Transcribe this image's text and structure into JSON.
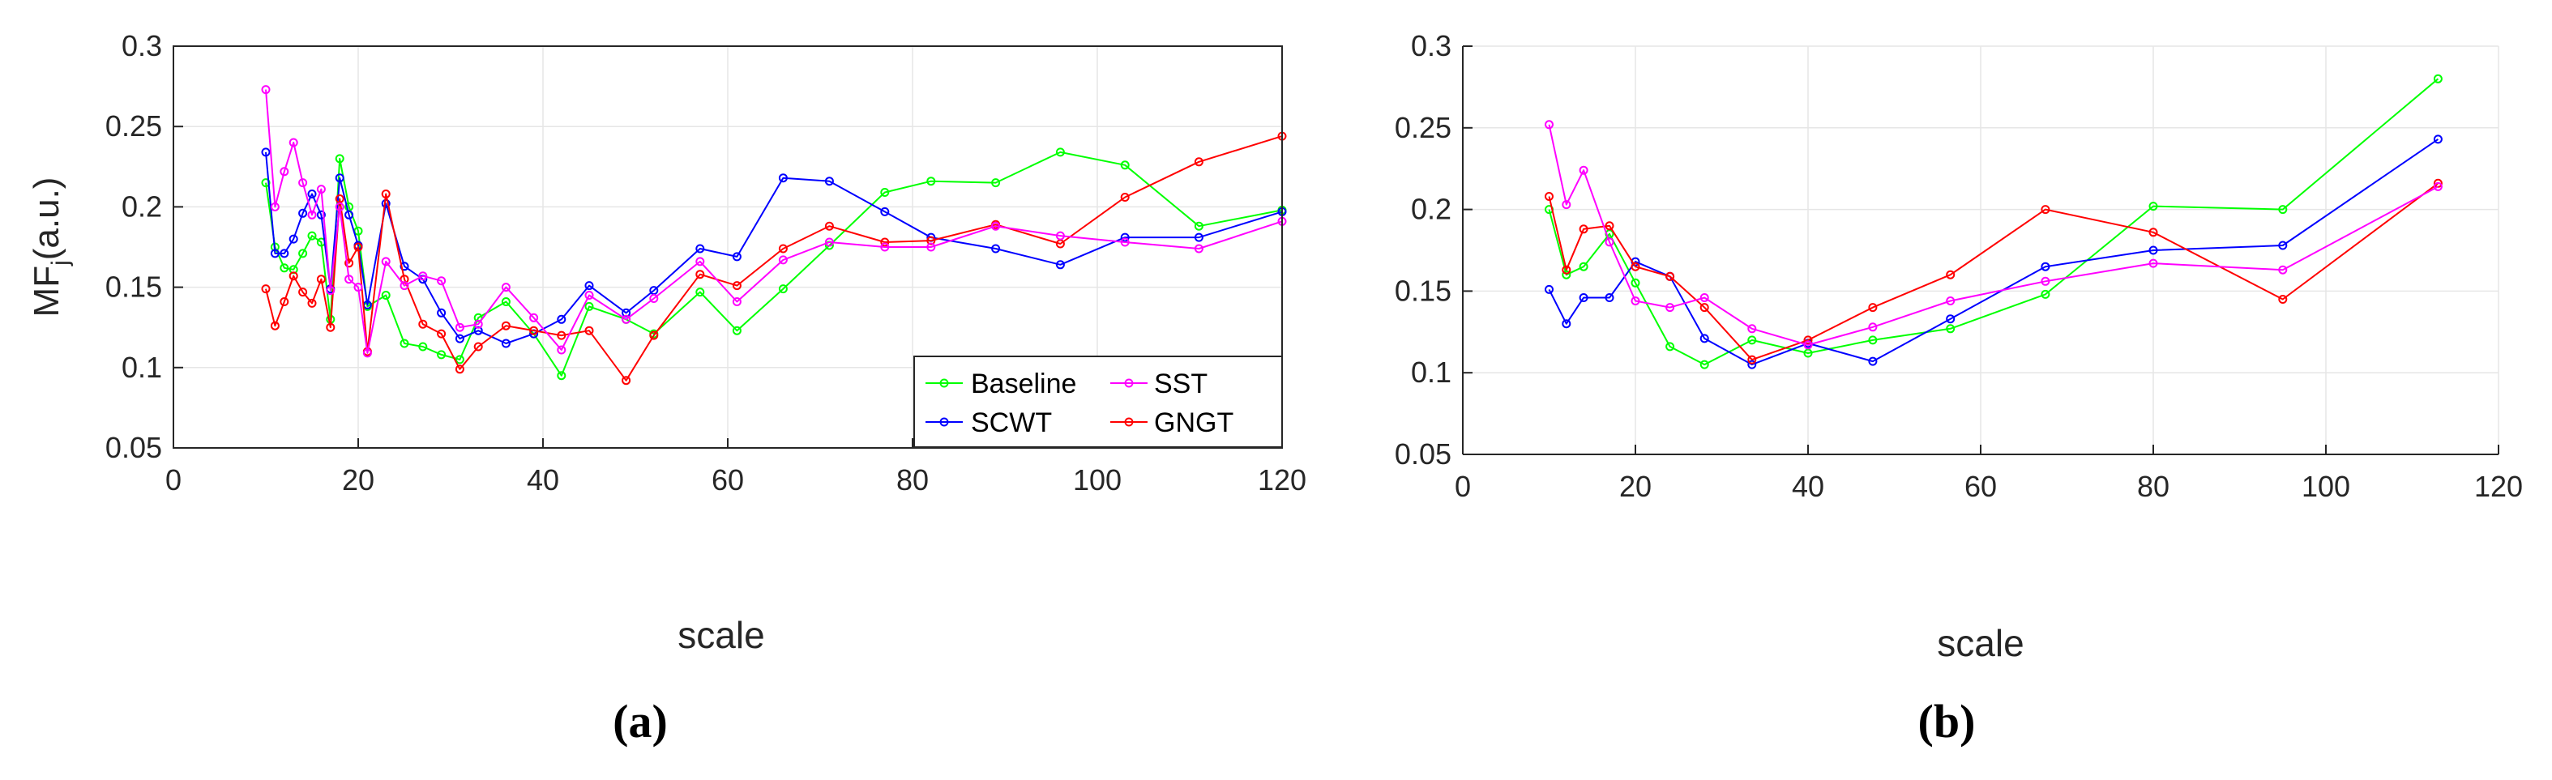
{
  "chart_data": [
    {
      "type": "line",
      "panel_label": "(a)",
      "xlabel": "scale",
      "ylabel": "MF",
      "ylabel_subscript": "j",
      "ylabel_suffix": "(a.u.)",
      "xlim": [
        0,
        120
      ],
      "ylim": [
        0.05,
        0.3
      ],
      "xticks": [
        0,
        20,
        40,
        60,
        80,
        100,
        120
      ],
      "yticks": [
        0.05,
        0.1,
        0.15,
        0.2,
        0.25,
        0.3
      ],
      "xtick_labels": [
        "0",
        "20",
        "40",
        "60",
        "80",
        "100",
        "120"
      ],
      "ytick_labels": [
        "0.05",
        "0.1",
        "0.15",
        "0.2",
        "0.25",
        "0.3"
      ],
      "grid": true,
      "legend": {
        "position": "bottom-right",
        "entries": [
          {
            "label": "Baseline",
            "series": 0
          },
          {
            "label": "SST",
            "series": 3
          },
          {
            "label": "SCWT",
            "series": 1
          },
          {
            "label": "GNGT",
            "series": 2
          }
        ]
      },
      "series": [
        {
          "name": "Baseline",
          "color": "#00ff00",
          "x": [
            10,
            11,
            12,
            13,
            14,
            15,
            16,
            17,
            18,
            19,
            20,
            21,
            23,
            25,
            27,
            29,
            31,
            33,
            36,
            39,
            42,
            45,
            49,
            52,
            57,
            61,
            66,
            71,
            77,
            82,
            89,
            96,
            103,
            111,
            120
          ],
          "y": [
            0.215,
            0.175,
            0.162,
            0.161,
            0.171,
            0.182,
            0.178,
            0.13,
            0.23,
            0.2,
            0.185,
            0.138,
            0.145,
            0.115,
            0.113,
            0.108,
            0.105,
            0.131,
            0.141,
            0.121,
            0.095,
            0.138,
            0.13,
            0.121,
            0.147,
            0.123,
            0.149,
            0.176,
            0.209,
            0.216,
            0.215,
            0.234,
            0.226,
            0.188,
            0.198
          ]
        },
        {
          "name": "SCWT",
          "color": "#0000ff",
          "x": [
            10,
            11,
            12,
            13,
            14,
            15,
            16,
            17,
            18,
            19,
            20,
            21,
            23,
            25,
            27,
            29,
            31,
            33,
            36,
            39,
            42,
            45,
            49,
            52,
            57,
            61,
            66,
            71,
            77,
            82,
            89,
            96,
            103,
            111,
            120
          ],
          "y": [
            0.234,
            0.171,
            0.171,
            0.18,
            0.196,
            0.208,
            0.195,
            0.149,
            0.218,
            0.195,
            0.176,
            0.139,
            0.202,
            0.163,
            0.155,
            0.134,
            0.118,
            0.123,
            0.115,
            0.121,
            0.13,
            0.151,
            0.134,
            0.148,
            0.174,
            0.169,
            0.218,
            0.216,
            0.197,
            0.181,
            0.174,
            0.164,
            0.181,
            0.181,
            0.197
          ]
        },
        {
          "name": "GNGT",
          "color": "#ff0000",
          "x": [
            10,
            11,
            12,
            13,
            14,
            15,
            16,
            17,
            18,
            19,
            20,
            21,
            23,
            25,
            27,
            29,
            31,
            33,
            36,
            39,
            42,
            45,
            49,
            52,
            57,
            61,
            66,
            71,
            77,
            82,
            89,
            96,
            103,
            111,
            120
          ],
          "y": [
            0.149,
            0.126,
            0.141,
            0.157,
            0.147,
            0.14,
            0.155,
            0.125,
            0.205,
            0.165,
            0.175,
            0.11,
            0.208,
            0.155,
            0.127,
            0.121,
            0.099,
            0.113,
            0.126,
            0.123,
            0.12,
            0.123,
            0.092,
            0.12,
            0.158,
            0.151,
            0.174,
            0.188,
            0.178,
            0.179,
            0.189,
            0.177,
            0.206,
            0.228,
            0.244
          ]
        },
        {
          "name": "SST",
          "color": "#ff00ff",
          "x": [
            10,
            11,
            12,
            13,
            14,
            15,
            16,
            17,
            18,
            19,
            20,
            21,
            23,
            25,
            27,
            29,
            31,
            33,
            36,
            39,
            42,
            45,
            49,
            52,
            57,
            61,
            66,
            71,
            77,
            82,
            89,
            96,
            103,
            111,
            120
          ],
          "y": [
            0.273,
            0.2,
            0.222,
            0.24,
            0.215,
            0.195,
            0.211,
            0.148,
            0.2,
            0.155,
            0.15,
            0.109,
            0.166,
            0.151,
            0.157,
            0.154,
            0.125,
            0.127,
            0.15,
            0.131,
            0.111,
            0.145,
            0.13,
            0.143,
            0.166,
            0.141,
            0.167,
            0.178,
            0.175,
            0.175,
            0.188,
            0.182,
            0.178,
            0.174,
            0.191
          ]
        }
      ]
    },
    {
      "type": "line",
      "panel_label": "(b)",
      "xlabel": "scale",
      "xlim": [
        0,
        120
      ],
      "ylim": [
        0.05,
        0.3
      ],
      "xticks": [
        0,
        20,
        40,
        60,
        80,
        100,
        120
      ],
      "yticks": [
        0.05,
        0.1,
        0.15,
        0.2,
        0.25,
        0.3
      ],
      "xtick_labels": [
        "0",
        "20",
        "40",
        "60",
        "80",
        "100",
        "120"
      ],
      "ytick_labels": [
        "0.05",
        "0.1",
        "0.15",
        "0.2",
        "0.25",
        "0.3"
      ],
      "grid": true,
      "series": [
        {
          "name": "Baseline",
          "color": "#00ff00",
          "x": [
            10,
            12,
            14,
            17,
            20,
            24,
            28,
            33.5,
            40,
            47.5,
            56.5,
            67.5,
            80,
            95,
            113
          ],
          "y": [
            0.2,
            0.16,
            0.165,
            0.185,
            0.155,
            0.116,
            0.105,
            0.12,
            0.112,
            0.12,
            0.127,
            0.148,
            0.202,
            0.2,
            0.28
          ]
        },
        {
          "name": "SCWT",
          "color": "#0000ff",
          "x": [
            10,
            12,
            14,
            17,
            20,
            24,
            28,
            33.5,
            40,
            47.5,
            56.5,
            67.5,
            80,
            95,
            113
          ],
          "y": [
            0.151,
            0.13,
            0.146,
            0.146,
            0.168,
            0.159,
            0.121,
            0.105,
            0.118,
            0.107,
            0.133,
            0.165,
            0.175,
            0.178,
            0.243
          ]
        },
        {
          "name": "GNGT",
          "color": "#ff0000",
          "x": [
            10,
            12,
            14,
            17,
            20,
            24,
            28,
            33.5,
            40,
            47.5,
            56.5,
            67.5,
            80,
            95,
            113
          ],
          "y": [
            0.208,
            0.163,
            0.188,
            0.19,
            0.165,
            0.159,
            0.14,
            0.108,
            0.12,
            0.14,
            0.16,
            0.2,
            0.186,
            0.145,
            0.216
          ]
        },
        {
          "name": "SST",
          "color": "#ff00ff",
          "x": [
            10,
            12,
            14,
            17,
            20,
            24,
            28,
            33.5,
            40,
            47.5,
            56.5,
            67.5,
            80,
            95,
            113
          ],
          "y": [
            0.252,
            0.203,
            0.224,
            0.18,
            0.144,
            0.14,
            0.146,
            0.127,
            0.117,
            0.128,
            0.144,
            0.156,
            0.167,
            0.163,
            0.214
          ]
        }
      ]
    }
  ]
}
